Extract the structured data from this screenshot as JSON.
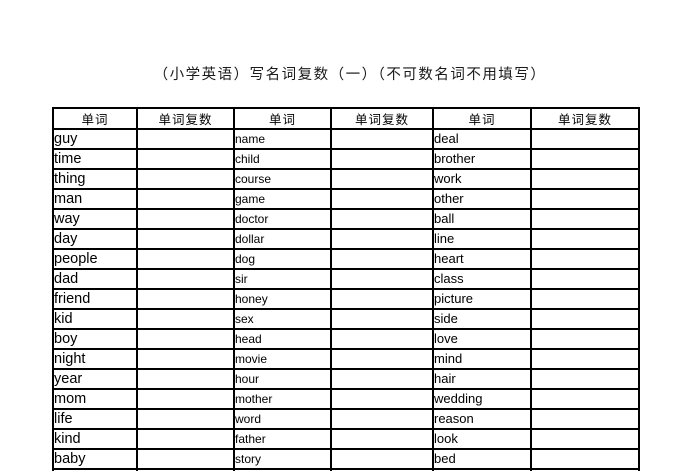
{
  "title": "（小学英语）写名词复数（一）（不可数名词不用填写）",
  "table": {
    "headers": [
      "单词",
      "单词复数",
      "单词",
      "单词复数",
      "单词",
      "单词复数"
    ],
    "rows": [
      [
        "guy",
        "name",
        "deal"
      ],
      [
        "time",
        "child",
        "brother"
      ],
      [
        "thing",
        "course",
        "work"
      ],
      [
        "man",
        "game",
        "other"
      ],
      [
        "way",
        "doctor",
        "ball"
      ],
      [
        "day",
        "dollar",
        "line"
      ],
      [
        "people",
        "dog",
        "heart"
      ],
      [
        "dad",
        "sir",
        "class"
      ],
      [
        "friend",
        "honey",
        "picture"
      ],
      [
        "kid",
        "sex",
        "side"
      ],
      [
        "boy",
        "head",
        "love"
      ],
      [
        "night",
        "movie",
        "mind"
      ],
      [
        "year",
        "hour",
        "hair"
      ],
      [
        "mom",
        "mother",
        "wedding"
      ],
      [
        "life",
        "word",
        "reason"
      ],
      [
        "kind",
        "father",
        "look"
      ],
      [
        "baby",
        "story",
        "bed"
      ]
    ],
    "blank_plural_value": ""
  },
  "colors": {
    "border": "#000000",
    "text": "#000000",
    "background": "#ffffff"
  }
}
